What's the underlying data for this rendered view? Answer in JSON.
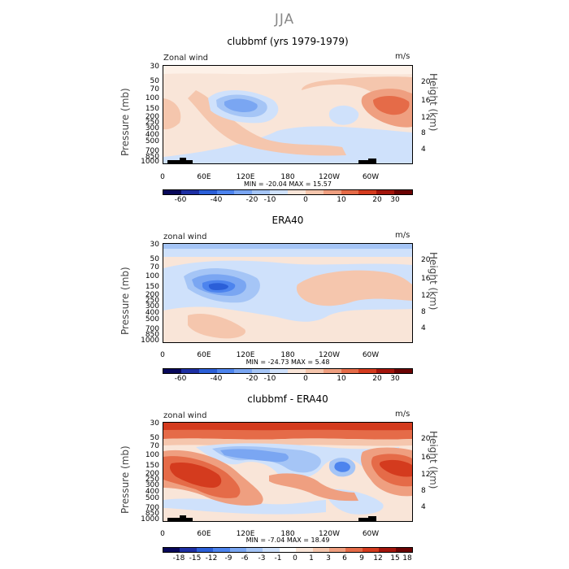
{
  "figure": {
    "title": "JJA"
  },
  "colors": {
    "cb1": [
      "#08085a",
      "#1d2fa3",
      "#2b5fd8",
      "#4d84ee",
      "#7aa6f2",
      "#a5c5f6",
      "#cfe1fb",
      "#f9e5d8",
      "#f5c6ad",
      "#ef9f80",
      "#e56b48",
      "#d43b1e",
      "#a3150c",
      "#6b0303"
    ],
    "cb2": [
      "#08085a",
      "#1d2fa3",
      "#2b5fd8",
      "#4d84ee",
      "#7aa6f2",
      "#a5c5f6",
      "#cfe1fb",
      "#ffffff",
      "#f9e5d8",
      "#f5c6ad",
      "#ef9f80",
      "#e56b48",
      "#d43b1e",
      "#a3150c",
      "#6b0303"
    ]
  },
  "chart_data": [
    {
      "type": "heatmap",
      "title": "clubbmf (yrs 1979-1979)",
      "corner_left": "Zonal wind",
      "corner_right": "m/s",
      "ylabel": "Pressure (mb)",
      "ylabel_right": "Height (km)",
      "yticks": [
        "30",
        "50",
        "70",
        "100",
        "150",
        "200",
        "250",
        "300",
        "400",
        "500",
        "700",
        "850",
        "1000"
      ],
      "height_ticks": [
        "20",
        "16",
        "12",
        "8",
        "4"
      ],
      "xticks": [
        "0",
        "60E",
        "120E",
        "180",
        "120W",
        "60W"
      ],
      "stats": "MIN = -20.04   MAX =  15.57",
      "colorbar_labels": [
        "-60",
        "-40",
        "-20",
        "-10",
        "0",
        "10",
        "20",
        "30"
      ],
      "min": -20.04,
      "max": 15.57
    },
    {
      "type": "heatmap",
      "title": "ERA40",
      "corner_left": "zonal wind",
      "corner_right": "m/s",
      "ylabel": "Pressure (mb)",
      "ylabel_right": "Height (km)",
      "yticks": [
        "30",
        "50",
        "70",
        "100",
        "150",
        "200",
        "250",
        "300",
        "400",
        "500",
        "700",
        "850",
        "1000"
      ],
      "height_ticks": [
        "20",
        "16",
        "12",
        "8",
        "4"
      ],
      "xticks": [
        "0",
        "60E",
        "120E",
        "180",
        "120W",
        "60W"
      ],
      "stats": "MIN = -24.73   MAX =   5.48",
      "colorbar_labels": [
        "-60",
        "-40",
        "-20",
        "-10",
        "0",
        "10",
        "20",
        "30"
      ],
      "min": -24.73,
      "max": 5.48
    },
    {
      "type": "heatmap",
      "title": "clubbmf - ERA40",
      "corner_left": "zonal wind",
      "corner_right": "m/s",
      "ylabel": "Pressure (mb)",
      "ylabel_right": "Height (km)",
      "yticks": [
        "30",
        "50",
        "70",
        "100",
        "150",
        "200",
        "250",
        "300",
        "400",
        "500",
        "700",
        "850",
        "1000"
      ],
      "height_ticks": [
        "20",
        "16",
        "12",
        "8",
        "4"
      ],
      "xticks": [
        "0",
        "60E",
        "120E",
        "180",
        "120W",
        "60W"
      ],
      "stats": "MIN = -7.04   MAX =  18.49",
      "colorbar_labels": [
        "-18",
        "-15",
        "-12",
        "-9",
        "-6",
        "-3",
        "-1",
        "0",
        "1",
        "3",
        "6",
        "9",
        "12",
        "15",
        "18"
      ],
      "min": -7.04,
      "max": 18.49
    }
  ]
}
